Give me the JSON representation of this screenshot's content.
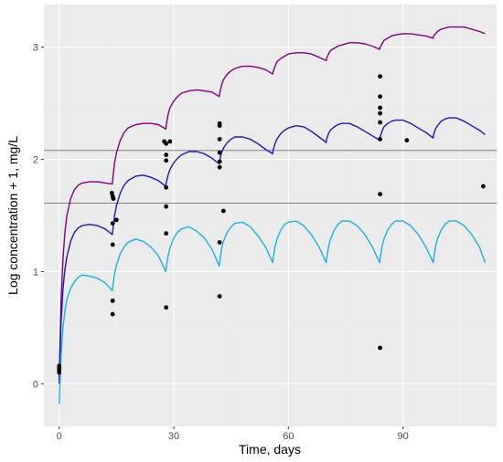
{
  "chart_data": {
    "type": "line",
    "xlabel": "Time, days",
    "ylabel": "Log concentration + 1, mg/L",
    "xlim": [
      -4,
      114.5
    ],
    "ylim": [
      -0.38,
      3.38
    ],
    "x_ticks": [
      0,
      30,
      60,
      90
    ],
    "x_tick_labels": [
      "0",
      "30",
      "60",
      "90"
    ],
    "y_ticks": [
      0,
      1,
      2,
      3
    ],
    "y_tick_labels": [
      "0",
      "1",
      "2",
      "3"
    ],
    "grid": true,
    "background": "#EBEBEB",
    "hlines": [
      {
        "y": 2.08,
        "color": "#7F7F7F"
      },
      {
        "y": 1.61,
        "color": "#7F7F7F"
      }
    ],
    "series": [
      {
        "color": "#800080",
        "dosing_interval_days": 14,
        "x": [
          0,
          0.5,
          1,
          1.5,
          2,
          3,
          4,
          5,
          6,
          8,
          10,
          12,
          13.9,
          14,
          14.5,
          15,
          16,
          17,
          18,
          20,
          22,
          24,
          26,
          27.9,
          28,
          28.5,
          29,
          30,
          31,
          32,
          34,
          36,
          38,
          40,
          41.9,
          42,
          42.5,
          43,
          44,
          45,
          46,
          48,
          50,
          52,
          54,
          55.9,
          56,
          56.5,
          57,
          58,
          59,
          60,
          62,
          64,
          66,
          68,
          69.9,
          70,
          70.5,
          71,
          72,
          73,
          74,
          76,
          78,
          80,
          82,
          83.9,
          84,
          84.5,
          85,
          86,
          87,
          88,
          90,
          92,
          94,
          96,
          97.9,
          98,
          98.5,
          99,
          100,
          101,
          102,
          104,
          106,
          108,
          110,
          111.5
        ],
        "y": [
          0.05,
          0.75,
          1.12,
          1.35,
          1.5,
          1.65,
          1.73,
          1.77,
          1.79,
          1.8,
          1.8,
          1.79,
          1.78,
          1.82,
          1.97,
          2.06,
          2.17,
          2.24,
          2.28,
          2.31,
          2.32,
          2.32,
          2.31,
          2.27,
          2.3,
          2.4,
          2.46,
          2.52,
          2.56,
          2.59,
          2.61,
          2.62,
          2.61,
          2.6,
          2.56,
          2.59,
          2.66,
          2.71,
          2.76,
          2.79,
          2.81,
          2.83,
          2.83,
          2.82,
          2.8,
          2.76,
          2.78,
          2.83,
          2.87,
          2.9,
          2.92,
          2.94,
          2.95,
          2.95,
          2.94,
          2.91,
          2.88,
          2.9,
          2.94,
          2.97,
          2.99,
          3.01,
          3.02,
          3.04,
          3.04,
          3.03,
          3.01,
          2.98,
          3.0,
          3.03,
          3.06,
          3.08,
          3.1,
          3.11,
          3.12,
          3.12,
          3.11,
          3.1,
          3.08,
          3.1,
          3.12,
          3.14,
          3.16,
          3.17,
          3.18,
          3.18,
          3.18,
          3.16,
          3.14,
          3.12
        ]
      },
      {
        "color": "#1A1AB8",
        "dosing_interval_days": 14,
        "x": [
          0,
          0.5,
          1,
          1.5,
          2,
          3,
          4,
          5,
          6,
          8,
          10,
          12,
          13.9,
          14,
          14.5,
          15,
          16,
          17,
          18,
          20,
          22,
          24,
          26,
          27.9,
          28,
          28.5,
          29,
          30,
          31,
          32,
          34,
          36,
          38,
          40,
          41.9,
          42,
          42.5,
          43,
          44,
          45,
          46,
          48,
          50,
          52,
          54,
          55.9,
          56,
          56.5,
          57,
          58,
          59,
          60,
          62,
          64,
          66,
          68,
          69.9,
          70,
          70.5,
          71,
          72,
          73,
          74,
          76,
          78,
          80,
          82,
          83.9,
          84,
          84.5,
          85,
          86,
          87,
          88,
          90,
          92,
          94,
          96,
          97.9,
          98,
          98.5,
          99,
          100,
          101,
          102,
          104,
          106,
          108,
          110,
          111.5
        ],
        "y": [
          0.0,
          0.55,
          0.85,
          1.02,
          1.13,
          1.27,
          1.35,
          1.39,
          1.41,
          1.42,
          1.41,
          1.38,
          1.33,
          1.36,
          1.5,
          1.59,
          1.7,
          1.77,
          1.81,
          1.85,
          1.86,
          1.84,
          1.81,
          1.76,
          1.79,
          1.86,
          1.91,
          1.97,
          2.01,
          2.04,
          2.07,
          2.07,
          2.05,
          2.01,
          1.96,
          1.99,
          2.06,
          2.1,
          2.15,
          2.18,
          2.2,
          2.2,
          2.18,
          2.14,
          2.09,
          2.05,
          2.08,
          2.14,
          2.18,
          2.23,
          2.26,
          2.28,
          2.3,
          2.29,
          2.25,
          2.2,
          2.15,
          2.18,
          2.23,
          2.26,
          2.29,
          2.31,
          2.32,
          2.32,
          2.29,
          2.25,
          2.21,
          2.17,
          2.2,
          2.25,
          2.29,
          2.32,
          2.34,
          2.35,
          2.35,
          2.32,
          2.28,
          2.24,
          2.19,
          2.22,
          2.27,
          2.3,
          2.34,
          2.36,
          2.37,
          2.37,
          2.34,
          2.3,
          2.26,
          2.22
        ]
      },
      {
        "color": "#1DB0E8",
        "dosing_interval_days": 14,
        "x": [
          0,
          0.5,
          1,
          1.5,
          2,
          3,
          4,
          5,
          6,
          8,
          10,
          12,
          13.9,
          14,
          14.5,
          15,
          16,
          17,
          18,
          20,
          22,
          24,
          26,
          27.9,
          28,
          28.5,
          29,
          30,
          31,
          32,
          34,
          36,
          38,
          40,
          41.9,
          42,
          42.5,
          43,
          44,
          45,
          46,
          48,
          50,
          52,
          54,
          55.9,
          56,
          56.5,
          57,
          58,
          59,
          60,
          62,
          64,
          66,
          68,
          69.9,
          70,
          70.5,
          71,
          72,
          73,
          74,
          76,
          78,
          80,
          82,
          83.9,
          84,
          84.5,
          85,
          86,
          87,
          88,
          90,
          92,
          94,
          96,
          97.9,
          98,
          98.5,
          99,
          100,
          101,
          102,
          104,
          106,
          108,
          110,
          111.5
        ],
        "y": [
          -0.18,
          0.25,
          0.5,
          0.65,
          0.75,
          0.85,
          0.91,
          0.95,
          0.97,
          0.96,
          0.94,
          0.9,
          0.83,
          0.86,
          0.98,
          1.06,
          1.16,
          1.22,
          1.26,
          1.29,
          1.27,
          1.22,
          1.14,
          1.0,
          1.03,
          1.14,
          1.21,
          1.3,
          1.35,
          1.38,
          1.4,
          1.36,
          1.3,
          1.2,
          1.05,
          1.08,
          1.2,
          1.27,
          1.35,
          1.4,
          1.43,
          1.44,
          1.4,
          1.32,
          1.22,
          1.08,
          1.11,
          1.22,
          1.29,
          1.37,
          1.42,
          1.44,
          1.45,
          1.41,
          1.33,
          1.22,
          1.08,
          1.11,
          1.22,
          1.29,
          1.37,
          1.42,
          1.45,
          1.45,
          1.41,
          1.33,
          1.22,
          1.08,
          1.11,
          1.22,
          1.29,
          1.37,
          1.42,
          1.45,
          1.45,
          1.41,
          1.33,
          1.22,
          1.08,
          1.11,
          1.22,
          1.29,
          1.37,
          1.42,
          1.45,
          1.45,
          1.41,
          1.33,
          1.22,
          1.08
        ]
      }
    ],
    "points": [
      {
        "x": 0,
        "y": 0.1
      },
      {
        "x": 0,
        "y": 0.12
      },
      {
        "x": 0,
        "y": 0.14
      },
      {
        "x": 0,
        "y": 0.16
      },
      {
        "x": 13.8,
        "y": 1.7
      },
      {
        "x": 14,
        "y": 1.67
      },
      {
        "x": 14.2,
        "y": 1.65
      },
      {
        "x": 14,
        "y": 1.43
      },
      {
        "x": 15,
        "y": 1.46
      },
      {
        "x": 14,
        "y": 1.24
      },
      {
        "x": 14,
        "y": 0.74
      },
      {
        "x": 14,
        "y": 0.62
      },
      {
        "x": 27.5,
        "y": 2.16
      },
      {
        "x": 28,
        "y": 2.14
      },
      {
        "x": 29,
        "y": 2.16
      },
      {
        "x": 28,
        "y": 2.04
      },
      {
        "x": 28,
        "y": 1.99
      },
      {
        "x": 28,
        "y": 1.75
      },
      {
        "x": 28,
        "y": 1.58
      },
      {
        "x": 28,
        "y": 1.34
      },
      {
        "x": 28,
        "y": 0.68
      },
      {
        "x": 42,
        "y": 2.32
      },
      {
        "x": 42,
        "y": 2.3
      },
      {
        "x": 42,
        "y": 2.18
      },
      {
        "x": 42,
        "y": 2.06
      },
      {
        "x": 42,
        "y": 1.98
      },
      {
        "x": 42,
        "y": 1.93
      },
      {
        "x": 43,
        "y": 1.54
      },
      {
        "x": 42,
        "y": 1.26
      },
      {
        "x": 42,
        "y": 0.78
      },
      {
        "x": 84,
        "y": 2.74
      },
      {
        "x": 84,
        "y": 2.56
      },
      {
        "x": 84,
        "y": 2.46
      },
      {
        "x": 84,
        "y": 2.41
      },
      {
        "x": 84,
        "y": 2.33
      },
      {
        "x": 84,
        "y": 2.18
      },
      {
        "x": 84,
        "y": 1.69
      },
      {
        "x": 84,
        "y": 0.32
      },
      {
        "x": 91,
        "y": 2.17
      },
      {
        "x": 111,
        "y": 1.76
      }
    ],
    "point_color": "#000000"
  }
}
